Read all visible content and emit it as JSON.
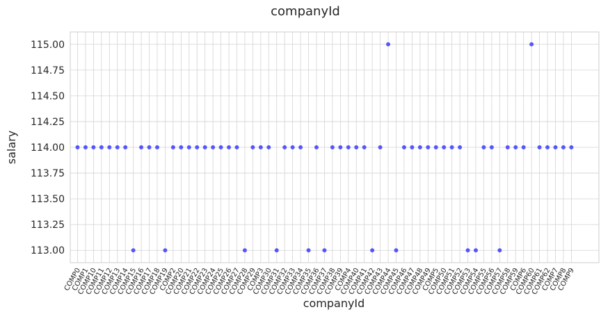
{
  "chart_data": {
    "type": "scatter",
    "title": "companyId",
    "xlabel": "companyId",
    "ylabel": "salary",
    "ylim": [
      112.88,
      115.12
    ],
    "yticks": [
      "113.00",
      "113.25",
      "113.50",
      "113.75",
      "114.00",
      "114.25",
      "114.50",
      "114.75",
      "115.00"
    ],
    "ytick_values": [
      113.0,
      113.25,
      113.5,
      113.75,
      114.0,
      114.25,
      114.5,
      114.75,
      115.0
    ],
    "grid": true,
    "point_color": "#3b3bff",
    "categories": [
      "COMP0",
      "COMP1",
      "COMP10",
      "COMP11",
      "COMP12",
      "COMP13",
      "COMP14",
      "COMP15",
      "COMP16",
      "COMP17",
      "COMP18",
      "COMP19",
      "COMP2",
      "COMP20",
      "COMP21",
      "COMP22",
      "COMP23",
      "COMP24",
      "COMP25",
      "COMP26",
      "COMP27",
      "COMP28",
      "COMP29",
      "COMP3",
      "COMP30",
      "COMP31",
      "COMP32",
      "COMP33",
      "COMP34",
      "COMP35",
      "COMP36",
      "COMP37",
      "COMP38",
      "COMP39",
      "COMP4",
      "COMP40",
      "COMP41",
      "COMP42",
      "COMP43",
      "COMP44",
      "COMP45",
      "COMP46",
      "COMP47",
      "COMP48",
      "COMP49",
      "COMP5",
      "COMP50",
      "COMP51",
      "COMP52",
      "COMP53",
      "COMP54",
      "COMP55",
      "COMP56",
      "COMP57",
      "COMP58",
      "COMP59",
      "COMP6",
      "COMP60",
      "COMP61",
      "COMP62",
      "COMP7",
      "COMP8",
      "COMP9"
    ],
    "values": [
      114,
      114,
      114,
      114,
      114,
      114,
      114,
      113,
      114,
      114,
      114,
      113,
      114,
      114,
      114,
      114,
      114,
      114,
      114,
      114,
      114,
      113,
      114,
      114,
      114,
      113,
      114,
      114,
      114,
      113,
      114,
      113,
      114,
      114,
      114,
      114,
      114,
      113,
      114,
      115,
      113,
      114,
      114,
      114,
      114,
      114,
      114,
      114,
      114,
      113,
      113,
      114,
      114,
      113,
      114,
      114,
      114,
      115,
      114,
      114,
      114,
      114,
      114
    ]
  }
}
